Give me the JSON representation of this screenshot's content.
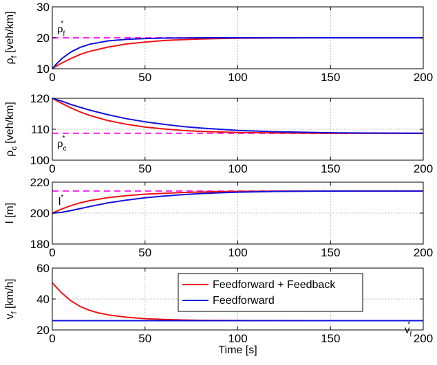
{
  "chart_data": [
    {
      "type": "line",
      "xlabel": "",
      "ylabel": {
        "main": "ρ",
        "sub": "f",
        "unit": " [veh/km]"
      },
      "xlim": [
        0,
        200
      ],
      "ylim": [
        10,
        30
      ],
      "xticks": [
        "0",
        "50",
        "100",
        "150",
        "200"
      ],
      "yticks": [
        "10",
        "20",
        "30"
      ],
      "grid": true,
      "reference": {
        "value": 20,
        "label": "ρ",
        "sub": "f",
        "sup": "*"
      },
      "series": [
        {
          "name": "Feedforward + Feedback",
          "x": [
            0,
            2,
            5,
            10,
            15,
            20,
            30,
            40,
            50,
            60,
            70,
            80,
            90,
            100,
            120,
            150,
            200
          ],
          "y": [
            10.0,
            10.8,
            11.8,
            13.3,
            14.6,
            15.6,
            17.0,
            18.0,
            18.6,
            19.1,
            19.4,
            19.6,
            19.75,
            19.85,
            19.95,
            20.0,
            20.0
          ]
        },
        {
          "name": "Feedforward",
          "x": [
            0,
            2,
            5,
            10,
            15,
            20,
            30,
            40,
            50,
            60,
            70,
            80,
            100,
            150,
            200
          ],
          "y": [
            10.0,
            11.4,
            13.2,
            15.4,
            16.9,
            17.9,
            19.0,
            19.5,
            19.75,
            19.9,
            19.95,
            20.0,
            20.0,
            20.0,
            20.0
          ]
        }
      ]
    },
    {
      "type": "line",
      "xlabel": "",
      "ylabel": {
        "main": "ρ",
        "sub": "c",
        "unit": " [veh/km]"
      },
      "xlim": [
        0,
        200
      ],
      "ylim": [
        100,
        120
      ],
      "xticks": [
        "0",
        "50",
        "100",
        "150",
        "200"
      ],
      "yticks": [
        "100",
        "110",
        "120"
      ],
      "grid": true,
      "reference": {
        "value": 108.7,
        "label": "ρ",
        "sub": "c",
        "sup": "*"
      },
      "series": [
        {
          "name": "Feedforward + Feedback",
          "x": [
            0,
            5,
            10,
            15,
            20,
            30,
            40,
            50,
            60,
            70,
            80,
            100,
            120,
            150,
            200
          ],
          "y": [
            120.0,
            118.4,
            116.9,
            115.6,
            114.5,
            112.8,
            111.6,
            110.7,
            110.1,
            109.6,
            109.3,
            108.95,
            108.8,
            108.7,
            108.7
          ]
        },
        {
          "name": "Feedforward",
          "x": [
            0,
            5,
            10,
            20,
            30,
            40,
            50,
            60,
            70,
            80,
            90,
            100,
            120,
            150,
            200
          ],
          "y": [
            120.0,
            119.1,
            118.0,
            116.2,
            114.7,
            113.4,
            112.4,
            111.6,
            110.9,
            110.4,
            110.0,
            109.6,
            109.2,
            108.85,
            108.7
          ]
        }
      ]
    },
    {
      "type": "line",
      "xlabel": "",
      "ylabel": {
        "main": "l",
        "sub": "",
        "unit": " [m]"
      },
      "xlim": [
        0,
        200
      ],
      "ylim": [
        180,
        220
      ],
      "xticks": [
        "0",
        "50",
        "100",
        "150",
        "200"
      ],
      "yticks": [
        "180",
        "200",
        "220"
      ],
      "grid": true,
      "reference": {
        "value": 214.3,
        "label": "l",
        "sub": "",
        "sup": "*"
      },
      "series": [
        {
          "name": "Feedforward + Feedback",
          "x": [
            0,
            5,
            10,
            15,
            20,
            30,
            40,
            50,
            60,
            70,
            80,
            100,
            120,
            150,
            200
          ],
          "y": [
            200.0,
            202.6,
            204.8,
            206.6,
            208.0,
            210.0,
            211.3,
            212.2,
            212.8,
            213.3,
            213.6,
            214.0,
            214.2,
            214.3,
            214.3
          ]
        },
        {
          "name": "Feedforward",
          "x": [
            0,
            5,
            10,
            15,
            20,
            30,
            40,
            50,
            60,
            70,
            80,
            90,
            100,
            120,
            150,
            200
          ],
          "y": [
            200.0,
            200.5,
            201.6,
            202.9,
            204.2,
            206.6,
            208.4,
            209.9,
            211.0,
            211.9,
            212.6,
            213.1,
            213.5,
            214.0,
            214.25,
            214.3
          ]
        }
      ]
    },
    {
      "type": "line",
      "xlabel": "Time [s]",
      "ylabel": {
        "main": "v",
        "sub": "f",
        "unit": " [km/h]"
      },
      "xlim": [
        0,
        200
      ],
      "ylim": [
        20,
        60
      ],
      "xticks": [
        "0",
        "50",
        "100",
        "150",
        "200"
      ],
      "yticks": [
        "20",
        "40",
        "60"
      ],
      "grid": true,
      "reference": {
        "value": 26,
        "label": "v",
        "sub": "f",
        "sup": "*"
      },
      "legend": {
        "entries": [
          "Feedforward + Feedback",
          "Feedforward"
        ],
        "placement": "center"
      },
      "series": [
        {
          "name": "Feedforward + Feedback",
          "x": [
            0,
            2,
            5,
            10,
            15,
            20,
            25,
            30,
            40,
            50,
            60,
            70,
            80,
            100,
            120,
            150,
            200
          ],
          "y": [
            50.5,
            47.8,
            44.0,
            38.9,
            35.2,
            32.7,
            31.0,
            29.8,
            28.2,
            27.3,
            26.8,
            26.45,
            26.25,
            26.1,
            26.05,
            26.0,
            26.0
          ]
        },
        {
          "name": "Feedforward",
          "x": [
            0,
            50,
            100,
            150,
            200
          ],
          "y": [
            26.0,
            26.0,
            26.0,
            26.0,
            26.0
          ]
        }
      ]
    }
  ],
  "colors": {
    "feedback_series": "#ee1111",
    "feedforward_series": "#1111dd",
    "reference_line": "#ff22ee",
    "grid": "#999999"
  }
}
